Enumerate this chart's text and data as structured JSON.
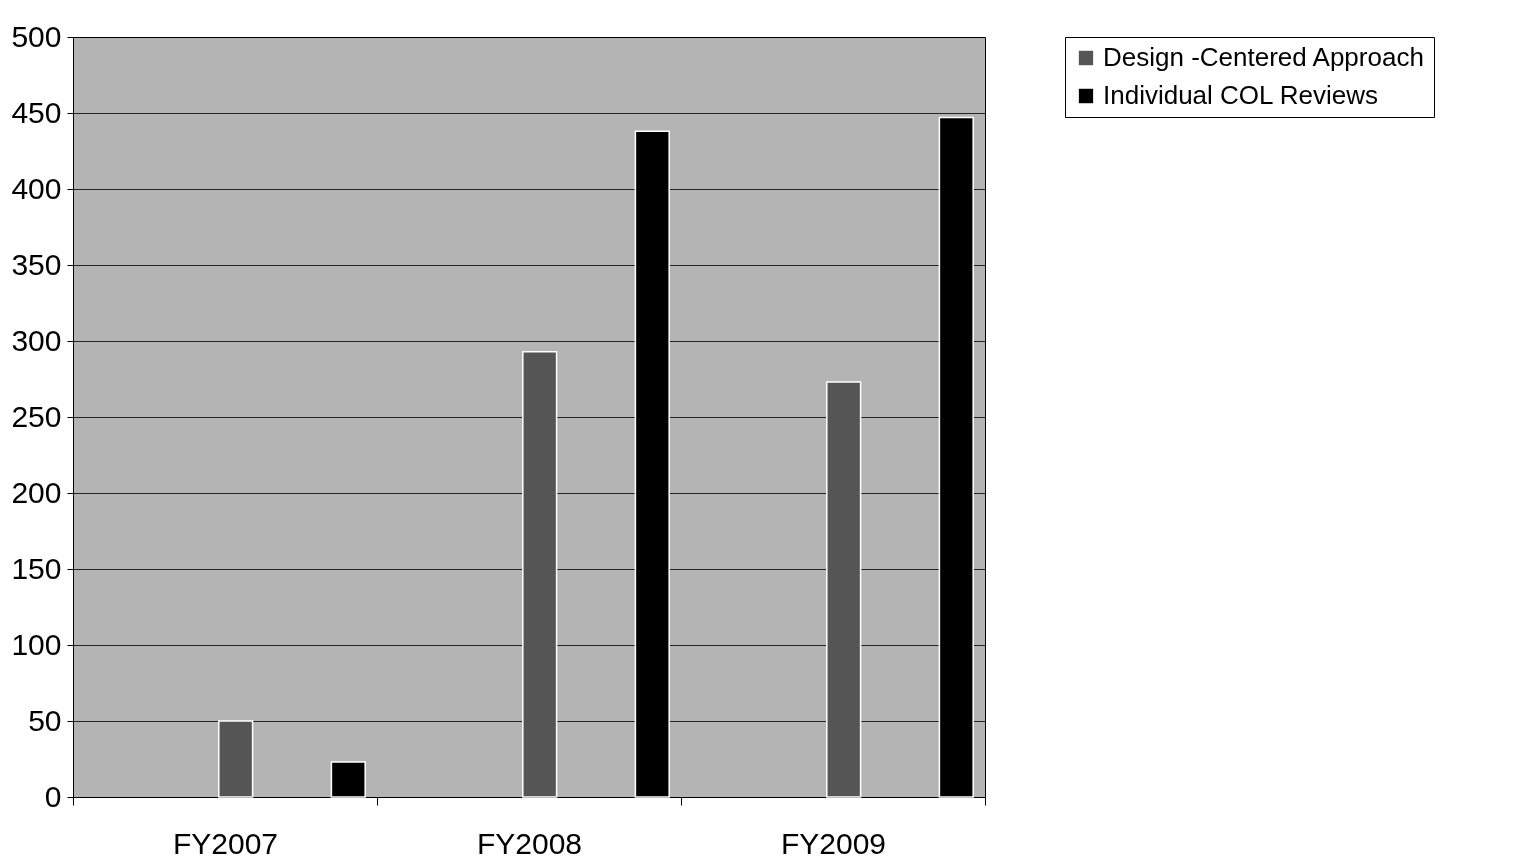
{
  "chart_data": {
    "type": "bar",
    "categories": [
      "FY2007",
      "FY2008",
      "FY2009"
    ],
    "series": [
      {
        "name": "Design -Centered Approach",
        "color": "#555555",
        "values": [
          50,
          293,
          273
        ]
      },
      {
        "name": "Individual COL Reviews",
        "color": "#000000",
        "values": [
          23,
          438,
          447
        ]
      }
    ],
    "ylim": [
      0,
      500
    ],
    "yticks": [
      0,
      50,
      100,
      150,
      200,
      250,
      300,
      350,
      400,
      450,
      500
    ],
    "grid": "y",
    "legend": "right"
  }
}
